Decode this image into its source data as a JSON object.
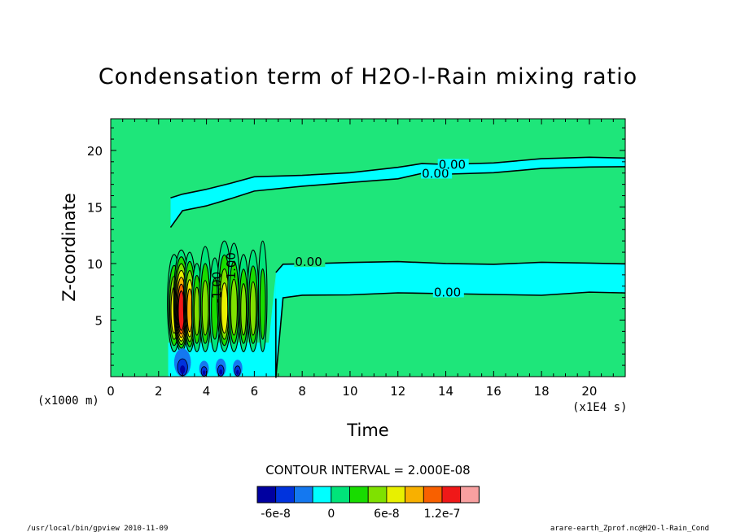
{
  "chart_data": {
    "type": "heatmap",
    "title": "Condensation term of H2O-l-Rain mixing ratio",
    "xlabel": "Time",
    "ylabel": "Z-coordinate",
    "x_unit": "(x1E4 s)",
    "y_unit": "(x1000 m)",
    "xlim": [
      0,
      21.5
    ],
    "ylim": [
      0,
      22.8
    ],
    "x_ticks": [
      0,
      2,
      4,
      6,
      8,
      10,
      12,
      14,
      16,
      18,
      20
    ],
    "y_ticks": [
      5,
      10,
      15,
      20
    ],
    "contour_interval_text": "CONTOUR INTERVAL = 2.000E-08",
    "contour_labels": [
      "0.00",
      "0.00",
      "0.00",
      "0.00",
      "-1.00",
      "1.00"
    ],
    "upper_band": {
      "x": [
        2.5,
        3,
        4,
        5,
        6,
        8,
        10,
        12,
        13,
        14,
        16,
        18,
        20,
        21.5
      ],
      "bottom": [
        13.3,
        14.6,
        15.1,
        15.8,
        16.3,
        16.8,
        17.2,
        17.6,
        17.9,
        17.9,
        18.1,
        18.3,
        18.5,
        18.6
      ],
      "top": [
        15.7,
        16.1,
        16.6,
        17.2,
        17.6,
        17.8,
        18.1,
        18.4,
        18.8,
        18.8,
        19.0,
        19.2,
        19.4,
        19.4
      ]
    },
    "mid_band": {
      "x": [
        6.9,
        7.2,
        8,
        10,
        12,
        14,
        16,
        18,
        20,
        21.5
      ],
      "bottom": [
        0,
        6.9,
        7.2,
        7.3,
        7.3,
        7.3,
        7.3,
        7.3,
        7.4,
        7.4
      ],
      "top": [
        9.1,
        9.9,
        10.0,
        10.2,
        10.1,
        10.0,
        10.0,
        10.0,
        10.0,
        10.0
      ]
    },
    "legend": {
      "colors": [
        "#0000a0",
        "#0033dd",
        "#1478f0",
        "#00ffff",
        "#00e47a",
        "#18dc00",
        "#7fe100",
        "#e8f000",
        "#f8b000",
        "#f86000",
        "#f01818",
        "#f8a0a0"
      ],
      "tick_labels": [
        "-6e-8",
        "0",
        "6e-8",
        "1.2e-7"
      ]
    },
    "background_color": "#1ee67a"
  },
  "footer": {
    "left": "/usr/local/bin/gpview  2010-11-09",
    "right": "arare-earth_Zprof.nc@H2O-l-Rain_Cond"
  }
}
